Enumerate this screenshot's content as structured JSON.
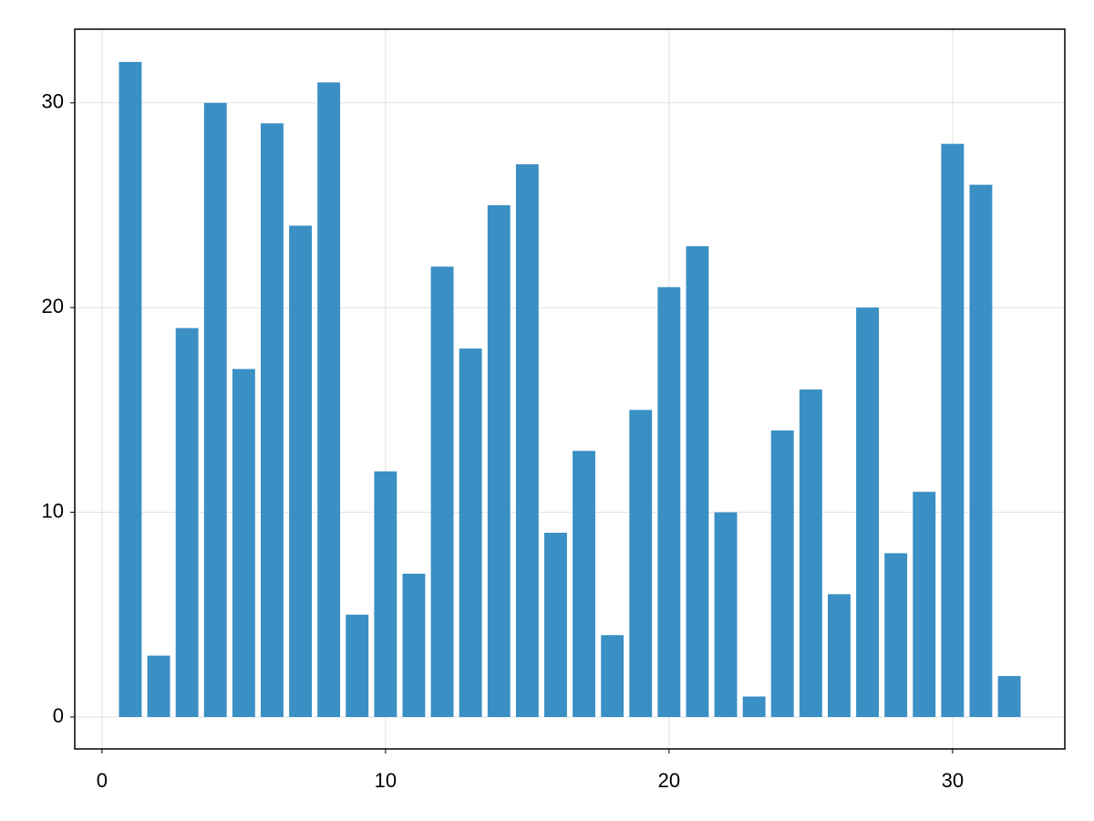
{
  "chart_data": {
    "type": "bar",
    "x": [
      1,
      2,
      3,
      4,
      5,
      6,
      7,
      8,
      9,
      10,
      11,
      12,
      13,
      14,
      15,
      16,
      17,
      18,
      19,
      20,
      21,
      22,
      23,
      24,
      25,
      26,
      27,
      28,
      29,
      30,
      31,
      32
    ],
    "values": [
      32,
      3,
      19,
      30,
      17,
      29,
      24,
      31,
      5,
      12,
      7,
      22,
      18,
      25,
      27,
      9,
      13,
      4,
      15,
      21,
      23,
      10,
      1,
      14,
      16,
      6,
      20,
      8,
      11,
      28,
      26,
      2
    ],
    "color": "#3a8fc4",
    "xlim": [
      -0.96,
      33.96
    ],
    "xticks": [
      0,
      10,
      20,
      30
    ],
    "ylim": [
      -1.56,
      33.6
    ],
    "yticks": [
      0,
      10,
      20,
      30
    ],
    "grid": true
  }
}
